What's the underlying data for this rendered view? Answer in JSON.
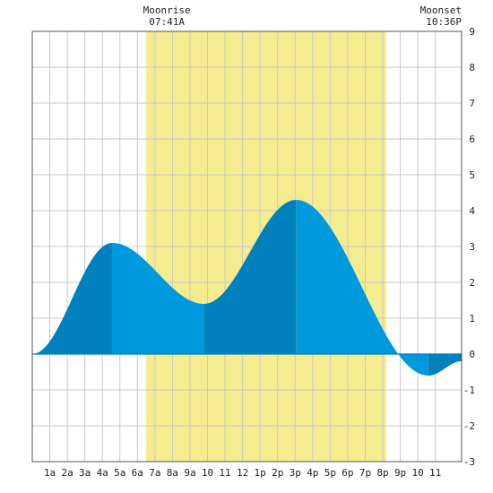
{
  "chart_data": {
    "type": "area",
    "x_unit": "hour of day",
    "xlim": [
      0,
      24.5
    ],
    "ylim": [
      -3,
      9
    ],
    "x_ticks": [
      {
        "x": 1,
        "label": "1a"
      },
      {
        "x": 2,
        "label": "2a"
      },
      {
        "x": 3,
        "label": "3a"
      },
      {
        "x": 4,
        "label": "4a"
      },
      {
        "x": 5,
        "label": "5a"
      },
      {
        "x": 6,
        "label": "6a"
      },
      {
        "x": 7,
        "label": "7a"
      },
      {
        "x": 8,
        "label": "8a"
      },
      {
        "x": 9,
        "label": "9a"
      },
      {
        "x": 10,
        "label": "10"
      },
      {
        "x": 11,
        "label": "11"
      },
      {
        "x": 12,
        "label": "12"
      },
      {
        "x": 13,
        "label": "1p"
      },
      {
        "x": 14,
        "label": "2p"
      },
      {
        "x": 15,
        "label": "3p"
      },
      {
        "x": 16,
        "label": "4p"
      },
      {
        "x": 17,
        "label": "5p"
      },
      {
        "x": 18,
        "label": "6p"
      },
      {
        "x": 19,
        "label": "7p"
      },
      {
        "x": 20,
        "label": "8p"
      },
      {
        "x": 21,
        "label": "9p"
      },
      {
        "x": 22,
        "label": "10"
      },
      {
        "x": 23,
        "label": "11"
      }
    ],
    "y_ticks": [
      9,
      8,
      7,
      6,
      5,
      4,
      3,
      2,
      1,
      0,
      -1,
      -2,
      -3
    ],
    "grid": true,
    "moon_window": {
      "rise_label": "Moonrise",
      "rise_time": "07:41A",
      "rise_x": 7.68,
      "set_label": "Moonset",
      "set_time": "10:36P",
      "set_x": 22.6,
      "shade_start": 6.5,
      "shade_end": 20.2
    },
    "tide_extrema": [
      {
        "x": 0.0,
        "y": 0.0
      },
      {
        "x": 4.55,
        "y": 3.1
      },
      {
        "x": 9.8,
        "y": 1.4
      },
      {
        "x": 15.05,
        "y": 4.3
      },
      {
        "x": 22.6,
        "y": -0.6
      },
      {
        "x": 24.5,
        "y": -0.2
      }
    ],
    "colors": {
      "shade": "#f4ec8e",
      "fill_light": "#0099dd",
      "fill_dark": "#0080bc",
      "grid": "#c8c8c8",
      "zero_line": "#0080bc"
    }
  }
}
